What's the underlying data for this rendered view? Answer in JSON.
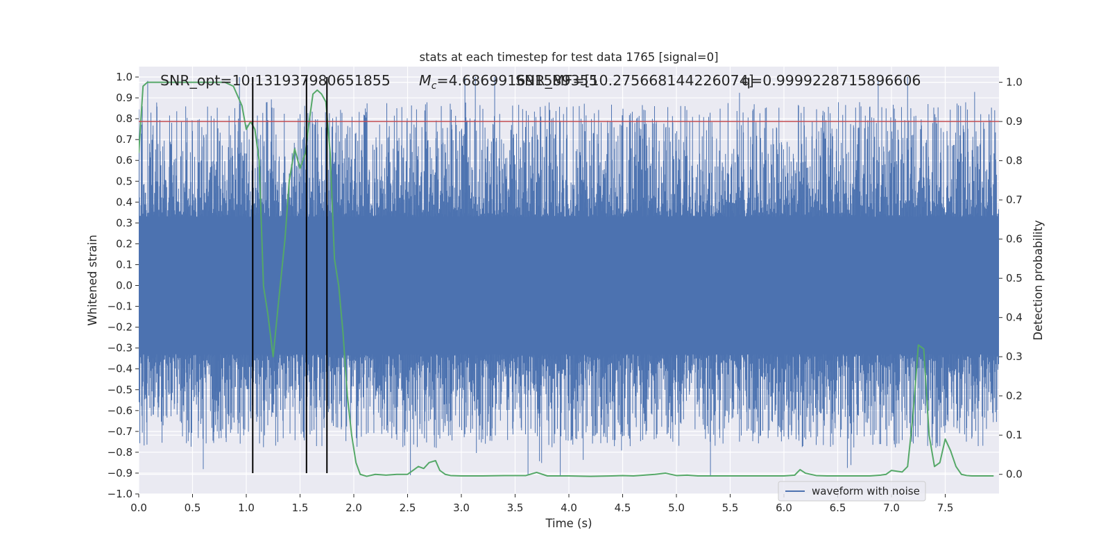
{
  "chart_data": {
    "type": "line",
    "title": "stats at each timestep for test data 1765 [signal=0]",
    "xlabel": "Time (s)",
    "ylabel_left": "Whitened strain",
    "ylabel_right": "Detection probability",
    "xlim": [
      0.0,
      8.0
    ],
    "ylim_left": [
      -1.0,
      1.05
    ],
    "ylim_right": [
      -0.05,
      1.04
    ],
    "x_ticks": [
      0.0,
      0.5,
      1.0,
      1.5,
      2.0,
      2.5,
      3.0,
      3.5,
      4.0,
      4.5,
      5.0,
      5.5,
      6.0,
      6.5,
      7.0,
      7.5
    ],
    "x_tick_labels": [
      "0.0",
      "0.5",
      "1.0",
      "1.5",
      "2.0",
      "2.5",
      "3.0",
      "3.5",
      "4.0",
      "4.5",
      "5.0",
      "5.5",
      "6.0",
      "6.5",
      "7.0",
      "7.5"
    ],
    "y_left_ticks": [
      -1.0,
      -0.9,
      -0.8,
      -0.7,
      -0.6,
      -0.5,
      -0.4,
      -0.3,
      -0.2,
      -0.1,
      0.0,
      0.1,
      0.2,
      0.3,
      0.4,
      0.5,
      0.6,
      0.7,
      0.8,
      0.9,
      1.0
    ],
    "y_left_tick_labels": [
      "−1.0",
      "−0.9",
      "−0.8",
      "−0.7",
      "−0.6",
      "−0.5",
      "−0.4",
      "−0.3",
      "−0.2",
      "−0.1",
      "0.0",
      "0.1",
      "0.2",
      "0.3",
      "0.4",
      "0.5",
      "0.6",
      "0.7",
      "0.8",
      "0.9",
      "1.0"
    ],
    "y_right_ticks": [
      0.0,
      0.1,
      0.2,
      0.3,
      0.4,
      0.5,
      0.6,
      0.7,
      0.8,
      0.9,
      1.0
    ],
    "y_right_tick_labels": [
      "0.0",
      "0.1",
      "0.2",
      "0.3",
      "0.4",
      "0.5",
      "0.6",
      "0.7",
      "0.8",
      "0.9",
      "1.0"
    ],
    "grid": true,
    "background": "#eaeaf2",
    "annotations": {
      "snr_opt": "SNR_opt=10.131937980651855",
      "mc_prefix": "M",
      "mc_sub": "c",
      "mc_value": "=4.686991691589355",
      "snr_mf": "SNR_MF=[10.275668144226074]",
      "q": "q=0.9999228715896606"
    },
    "series": [
      {
        "name": "waveform with noise",
        "axis": "left",
        "color": "#4c72b0",
        "kind": "noise",
        "envelope": 0.33,
        "peak_max": 1.0,
        "peak_min": -0.91,
        "note_values": "dense whitened-strain noise sampled across 0–8 s"
      },
      {
        "axis": "right",
        "color": "#55a868",
        "x": [
          0.0,
          0.04,
          0.08,
          0.12,
          0.2,
          0.3,
          0.4,
          0.5,
          0.6,
          0.7,
          0.8,
          0.88,
          0.96,
          1.0,
          1.04,
          1.08,
          1.12,
          1.16,
          1.2,
          1.25,
          1.3,
          1.36,
          1.4,
          1.45,
          1.5,
          1.55,
          1.58,
          1.62,
          1.66,
          1.7,
          1.74,
          1.78,
          1.82,
          1.86,
          1.9,
          1.94,
          1.98,
          2.02,
          2.06,
          2.12,
          2.2,
          2.3,
          2.4,
          2.5,
          2.55,
          2.6,
          2.65,
          2.7,
          2.76,
          2.8,
          2.85,
          2.9,
          3.0,
          3.2,
          3.4,
          3.6,
          3.7,
          3.8,
          3.9,
          4.0,
          4.2,
          4.4,
          4.5,
          4.6,
          4.8,
          4.9,
          5.0,
          5.1,
          5.2,
          5.4,
          5.6,
          5.8,
          6.0,
          6.1,
          6.15,
          6.2,
          6.3,
          6.4,
          6.5,
          6.6,
          6.8,
          6.9,
          6.95,
          7.0,
          7.05,
          7.1,
          7.15,
          7.2,
          7.25,
          7.3,
          7.35,
          7.4,
          7.45,
          7.5,
          7.55,
          7.6,
          7.65,
          7.7,
          7.75,
          7.8,
          7.9,
          7.95
        ],
        "values": [
          0.82,
          0.99,
          1.0,
          1.0,
          1.0,
          1.0,
          1.0,
          1.0,
          1.0,
          1.0,
          1.0,
          0.99,
          0.94,
          0.88,
          0.9,
          0.88,
          0.8,
          0.48,
          0.41,
          0.3,
          0.44,
          0.6,
          0.75,
          0.83,
          0.78,
          0.82,
          0.89,
          0.97,
          0.98,
          0.97,
          0.95,
          0.82,
          0.55,
          0.48,
          0.36,
          0.2,
          0.1,
          0.03,
          0.0,
          -0.005,
          0.0,
          -0.002,
          0.0,
          0.0,
          0.01,
          0.02,
          0.015,
          0.03,
          0.035,
          0.01,
          0.0,
          -0.003,
          -0.004,
          -0.004,
          -0.003,
          -0.003,
          0.005,
          -0.004,
          -0.004,
          -0.004,
          -0.005,
          -0.004,
          -0.003,
          -0.004,
          0.0,
          0.003,
          -0.003,
          -0.002,
          -0.004,
          -0.004,
          -0.004,
          -0.004,
          -0.004,
          -0.002,
          0.012,
          0.003,
          -0.003,
          -0.004,
          -0.004,
          -0.004,
          -0.004,
          -0.002,
          0.0,
          0.01,
          0.008,
          0.006,
          0.02,
          0.15,
          0.33,
          0.32,
          0.1,
          0.02,
          0.03,
          0.09,
          0.06,
          0.02,
          0.0,
          -0.003,
          -0.004,
          -0.004,
          -0.004,
          -0.004
        ]
      },
      {
        "axis": "right",
        "color": "#c44e52",
        "kind": "threshold",
        "value": 0.9
      }
    ],
    "vlines": {
      "color": "#000000",
      "x": [
        1.06,
        1.56,
        1.75
      ],
      "y_range_left": [
        -0.9,
        1.0
      ]
    },
    "legend": {
      "placement": "lower-right",
      "entries": [
        "waveform with noise"
      ]
    }
  }
}
